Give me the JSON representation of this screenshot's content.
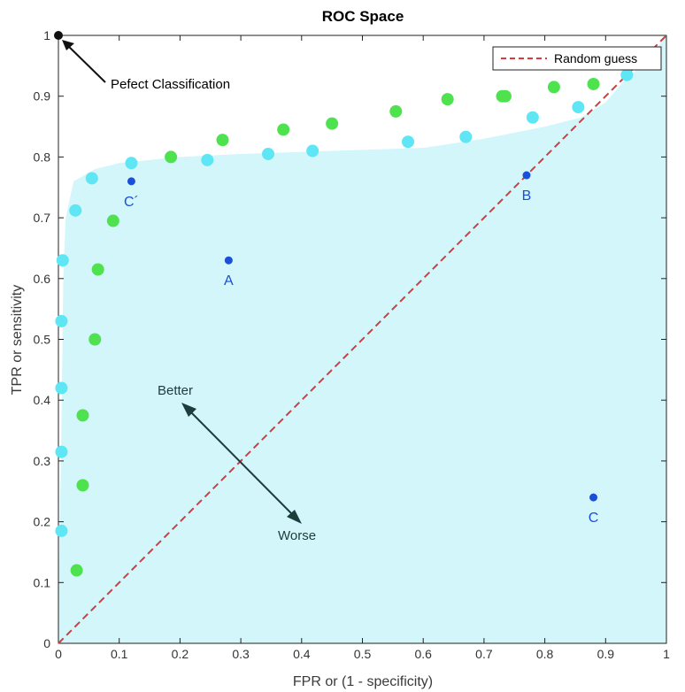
{
  "chart_data": {
    "type": "scatter",
    "title": "ROC Space",
    "xlabel": "FPR or (1 - specificity)",
    "ylabel": "TPR or sensitivity",
    "xlim": [
      0,
      1
    ],
    "ylim": [
      0,
      1
    ],
    "xticks": [
      "0",
      "0.1",
      "0.2",
      "0.3",
      "0.4",
      "0.5",
      "0.6",
      "0.7",
      "0.8",
      "0.9",
      "1"
    ],
    "yticks": [
      "0",
      "0.1",
      "0.2",
      "0.3",
      "0.4",
      "0.5",
      "0.6",
      "0.7",
      "0.8",
      "0.9",
      "1"
    ],
    "grid": false,
    "legend": {
      "placement": "top-right",
      "entries": [
        "Random guess"
      ]
    },
    "random_guess": {
      "name": "Random guess",
      "x": [
        0,
        1
      ],
      "y": [
        0,
        1
      ],
      "color": "#d93a3a",
      "style": "dashed"
    },
    "shaded_region": {
      "color": "#d2f6fa",
      "boundary": [
        [
          0,
          0.08
        ],
        [
          0.005,
          0.35
        ],
        [
          0.008,
          0.6
        ],
        [
          0.012,
          0.7
        ],
        [
          0.025,
          0.76
        ],
        [
          0.06,
          0.78
        ],
        [
          0.1,
          0.79
        ],
        [
          0.2,
          0.8
        ],
        [
          0.3,
          0.805
        ],
        [
          0.45,
          0.81
        ],
        [
          0.6,
          0.815
        ],
        [
          0.7,
          0.83
        ],
        [
          0.8,
          0.85
        ],
        [
          0.86,
          0.865
        ],
        [
          0.9,
          0.89
        ],
        [
          0.93,
          0.925
        ],
        [
          0.97,
          0.96
        ],
        [
          1,
          1
        ],
        [
          1,
          0
        ],
        [
          0,
          0
        ]
      ]
    },
    "series": [
      {
        "color": "#4ee34e",
        "x": [
          0.03,
          0.04,
          0.04,
          0.06,
          0.065,
          0.09,
          0.185,
          0.27,
          0.37,
          0.45,
          0.555,
          0.64,
          0.73,
          0.735,
          0.815,
          0.88
        ],
        "y": [
          0.12,
          0.26,
          0.375,
          0.5,
          0.615,
          0.695,
          0.8,
          0.828,
          0.845,
          0.855,
          0.875,
          0.895,
          0.9,
          0.9,
          0.915,
          0.92
        ]
      },
      {
        "color": "#5ee6f4",
        "x": [
          0.005,
          0.005,
          0.005,
          0.005,
          0.007,
          0.028,
          0.055,
          0.12,
          0.245,
          0.345,
          0.418,
          0.575,
          0.67,
          0.78,
          0.855,
          0.935
        ],
        "y": [
          0.185,
          0.315,
          0.42,
          0.53,
          0.63,
          0.712,
          0.765,
          0.79,
          0.795,
          0.805,
          0.81,
          0.825,
          0.833,
          0.865,
          0.882,
          0.935
        ]
      }
    ],
    "labeled_points": [
      {
        "label": "A",
        "x": 0.28,
        "y": 0.63,
        "color": "#1a4fd8"
      },
      {
        "label": "B",
        "x": 0.77,
        "y": 0.77,
        "color": "#1a4fd8"
      },
      {
        "label": "C",
        "x": 0.88,
        "y": 0.24,
        "color": "#1a4fd8"
      },
      {
        "label": "C´",
        "x": 0.12,
        "y": 0.76,
        "color": "#1a4fd8"
      }
    ],
    "annotations": {
      "perfect": {
        "text": "Pefect Classification",
        "x": 0,
        "y": 1
      },
      "better": "Better",
      "worse": "Worse"
    }
  }
}
